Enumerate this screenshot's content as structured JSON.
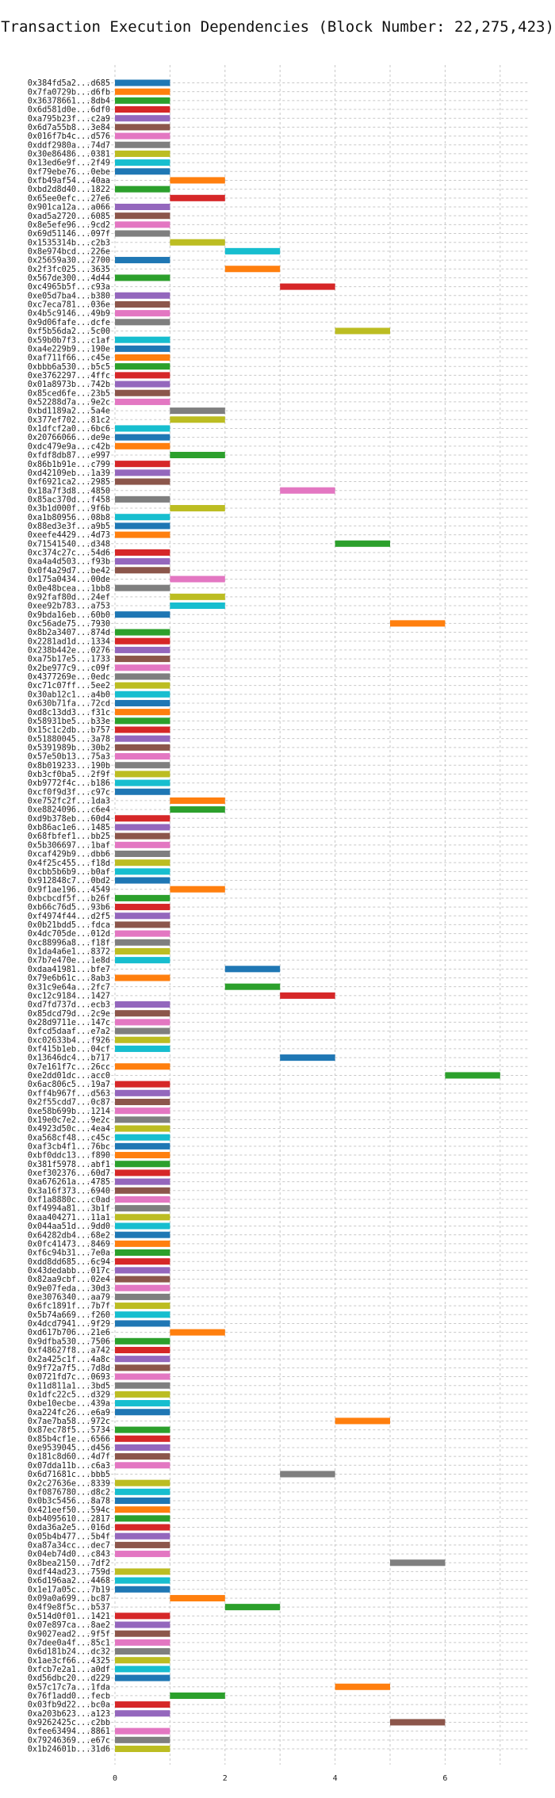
{
  "chart_data": {
    "type": "gantt",
    "title": "Transaction Execution Dependencies (Block Number: 22,275,423)",
    "xlabel": "",
    "ylabel": "",
    "xlim": [
      -0.5,
      7.5
    ],
    "x_ticks": [
      0,
      2,
      4,
      6
    ],
    "grid": true,
    "colors": [
      "#1f77b4",
      "#ff7f0e",
      "#2ca02c",
      "#d62728",
      "#9467bd",
      "#8c564b",
      "#e377c2",
      "#7f7f7f",
      "#bcbd22",
      "#17becf"
    ],
    "transactions": [
      {
        "label": "0x384fd5a2...d685",
        "start": 0,
        "end": 1
      },
      {
        "label": "0x7fa0729b...d6fb",
        "start": 0,
        "end": 1
      },
      {
        "label": "0x36378661...8db4",
        "start": 0,
        "end": 1
      },
      {
        "label": "0x6d581d0e...6df0",
        "start": 0,
        "end": 1
      },
      {
        "label": "0xa795b23f...c2a9",
        "start": 0,
        "end": 1
      },
      {
        "label": "0x6d7a55b8...3e84",
        "start": 0,
        "end": 1
      },
      {
        "label": "0x016f7b4c...d576",
        "start": 0,
        "end": 1
      },
      {
        "label": "0xddf2980a...74d7",
        "start": 0,
        "end": 1
      },
      {
        "label": "0x30e86486...0381",
        "start": 0,
        "end": 1
      },
      {
        "label": "0x13ed6e9f...2f49",
        "start": 0,
        "end": 1
      },
      {
        "label": "0xf79ebe76...0ebe",
        "start": 0,
        "end": 1
      },
      {
        "label": "0xfb49af54...40aa",
        "start": 1,
        "end": 2
      },
      {
        "label": "0xbd2d8d40...1822",
        "start": 0,
        "end": 1
      },
      {
        "label": "0x65ee0efc...27e6",
        "start": 1,
        "end": 2
      },
      {
        "label": "0x901ca12a...a066",
        "start": 0,
        "end": 1
      },
      {
        "label": "0xad5a2720...6085",
        "start": 0,
        "end": 1
      },
      {
        "label": "0x8e5efe96...9cd2",
        "start": 0,
        "end": 1
      },
      {
        "label": "0x69d51146...097f",
        "start": 0,
        "end": 1
      },
      {
        "label": "0x1535314b...c2b3",
        "start": 1,
        "end": 2
      },
      {
        "label": "0x8e974bcd...226e",
        "start": 2,
        "end": 3
      },
      {
        "label": "0x25659a30...2700",
        "start": 0,
        "end": 1
      },
      {
        "label": "0x2f3fc025...3635",
        "start": 2,
        "end": 3
      },
      {
        "label": "0x567de300...4d44",
        "start": 0,
        "end": 1
      },
      {
        "label": "0xc4965b5f...c93a",
        "start": 3,
        "end": 4
      },
      {
        "label": "0xe05d7ba4...b380",
        "start": 0,
        "end": 1
      },
      {
        "label": "0xc7eca781...036e",
        "start": 0,
        "end": 1
      },
      {
        "label": "0x4b5c9146...49b9",
        "start": 0,
        "end": 1
      },
      {
        "label": "0x9d06fafe...dcfe",
        "start": 0,
        "end": 1
      },
      {
        "label": "0xf5b56da2...5c00",
        "start": 4,
        "end": 5
      },
      {
        "label": "0x59b0b7f3...c1af",
        "start": 0,
        "end": 1
      },
      {
        "label": "0xa4e229b9...190e",
        "start": 0,
        "end": 1
      },
      {
        "label": "0xaf711f66...c45e",
        "start": 0,
        "end": 1
      },
      {
        "label": "0xbbb6a530...b5c5",
        "start": 0,
        "end": 1
      },
      {
        "label": "0xe3762297...4ffc",
        "start": 0,
        "end": 1
      },
      {
        "label": "0x01a8973b...742b",
        "start": 0,
        "end": 1
      },
      {
        "label": "0x85ced6fe...23b5",
        "start": 0,
        "end": 1
      },
      {
        "label": "0x52288d7a...9e2c",
        "start": 0,
        "end": 1
      },
      {
        "label": "0xbd1189a2...5a4e",
        "start": 1,
        "end": 2
      },
      {
        "label": "0x377ef702...81c2",
        "start": 1,
        "end": 2
      },
      {
        "label": "0x1dfcf2a0...6bc6",
        "start": 0,
        "end": 1
      },
      {
        "label": "0x20766066...de9e",
        "start": 0,
        "end": 1
      },
      {
        "label": "0xdc479e9a...c42b",
        "start": 0,
        "end": 1
      },
      {
        "label": "0xfdf8db87...e997",
        "start": 1,
        "end": 2
      },
      {
        "label": "0x86b1b91e...c799",
        "start": 0,
        "end": 1
      },
      {
        "label": "0xd42109eb...1a39",
        "start": 0,
        "end": 1
      },
      {
        "label": "0xf6921ca2...2985",
        "start": 0,
        "end": 1
      },
      {
        "label": "0x18a7f3d8...4850",
        "start": 3,
        "end": 4
      },
      {
        "label": "0x85ac370d...f458",
        "start": 0,
        "end": 1
      },
      {
        "label": "0x3b1d000f...9f6b",
        "start": 1,
        "end": 2
      },
      {
        "label": "0xa1b80956...08b8",
        "start": 0,
        "end": 1
      },
      {
        "label": "0x88ed3e3f...a9b5",
        "start": 0,
        "end": 1
      },
      {
        "label": "0xeefe4429...4d73",
        "start": 0,
        "end": 1
      },
      {
        "label": "0x71541540...d348",
        "start": 4,
        "end": 5
      },
      {
        "label": "0xc374c27c...54d6",
        "start": 0,
        "end": 1
      },
      {
        "label": "0xa4a4d503...f93b",
        "start": 0,
        "end": 1
      },
      {
        "label": "0x0f4a29d7...be42",
        "start": 0,
        "end": 1
      },
      {
        "label": "0x175a0434...00de",
        "start": 1,
        "end": 2
      },
      {
        "label": "0x0e48bcea...1bb8",
        "start": 0,
        "end": 1
      },
      {
        "label": "0x92faf80d...24ef",
        "start": 1,
        "end": 2
      },
      {
        "label": "0xee92b783...a753",
        "start": 1,
        "end": 2
      },
      {
        "label": "0x9bda16eb...60b0",
        "start": 0,
        "end": 1
      },
      {
        "label": "0xc56ade75...7930",
        "start": 5,
        "end": 6
      },
      {
        "label": "0x8b2a3407...874d",
        "start": 0,
        "end": 1
      },
      {
        "label": "0x2281ad1d...1334",
        "start": 0,
        "end": 1
      },
      {
        "label": "0x238b442e...0276",
        "start": 0,
        "end": 1
      },
      {
        "label": "0xa75b17e5...1733",
        "start": 0,
        "end": 1
      },
      {
        "label": "0x2be977c9...c09f",
        "start": 0,
        "end": 1
      },
      {
        "label": "0x4377269e...0edc",
        "start": 0,
        "end": 1
      },
      {
        "label": "0xc71c07ff...5ee2",
        "start": 0,
        "end": 1
      },
      {
        "label": "0x30ab12c1...a4b0",
        "start": 0,
        "end": 1
      },
      {
        "label": "0x630b71fa...72cd",
        "start": 0,
        "end": 1
      },
      {
        "label": "0xd8c13dd3...f31c",
        "start": 0,
        "end": 1
      },
      {
        "label": "0x58931be5...b33e",
        "start": 0,
        "end": 1
      },
      {
        "label": "0x15c1c2db...b757",
        "start": 0,
        "end": 1
      },
      {
        "label": "0x51880045...3a78",
        "start": 0,
        "end": 1
      },
      {
        "label": "0x5391989b...30b2",
        "start": 0,
        "end": 1
      },
      {
        "label": "0x57e50b13...75a3",
        "start": 0,
        "end": 1
      },
      {
        "label": "0x8b019233...190b",
        "start": 0,
        "end": 1
      },
      {
        "label": "0xb3cf0ba5...2f9f",
        "start": 0,
        "end": 1
      },
      {
        "label": "0xb9772f4c...b186",
        "start": 0,
        "end": 1
      },
      {
        "label": "0xcf0f9d3f...c97c",
        "start": 0,
        "end": 1
      },
      {
        "label": "0xe752fc2f...1da3",
        "start": 1,
        "end": 2
      },
      {
        "label": "0xe8824096...c6e4",
        "start": 1,
        "end": 2
      },
      {
        "label": "0xd9b378eb...60d4",
        "start": 0,
        "end": 1
      },
      {
        "label": "0xb86ac1e6...1485",
        "start": 0,
        "end": 1
      },
      {
        "label": "0x68fbfef1...bb25",
        "start": 0,
        "end": 1
      },
      {
        "label": "0x5b306697...1baf",
        "start": 0,
        "end": 1
      },
      {
        "label": "0xcaf429b9...dbb6",
        "start": 0,
        "end": 1
      },
      {
        "label": "0x4f25c455...f18d",
        "start": 0,
        "end": 1
      },
      {
        "label": "0xcbb5b6b9...b0af",
        "start": 0,
        "end": 1
      },
      {
        "label": "0x912848c7...0bd2",
        "start": 0,
        "end": 1
      },
      {
        "label": "0x9f1ae196...4549",
        "start": 1,
        "end": 2
      },
      {
        "label": "0xbcbcdf5f...b26f",
        "start": 0,
        "end": 1
      },
      {
        "label": "0xb66c76d5...93b6",
        "start": 0,
        "end": 1
      },
      {
        "label": "0xf4974f44...d2f5",
        "start": 0,
        "end": 1
      },
      {
        "label": "0x0b21bdd5...fdca",
        "start": 0,
        "end": 1
      },
      {
        "label": "0x4dc705de...012d",
        "start": 0,
        "end": 1
      },
      {
        "label": "0xc88996a8...f18f",
        "start": 0,
        "end": 1
      },
      {
        "label": "0x1da4a6e1...8372",
        "start": 0,
        "end": 1
      },
      {
        "label": "0x7b7e470e...1e8d",
        "start": 0,
        "end": 1
      },
      {
        "label": "0xdaa41981...bfe7",
        "start": 2,
        "end": 3
      },
      {
        "label": "0x79e6b61c...8ab3",
        "start": 0,
        "end": 1
      },
      {
        "label": "0x31c9e64a...2fc7",
        "start": 2,
        "end": 3
      },
      {
        "label": "0xc12c9184...1427",
        "start": 3,
        "end": 4
      },
      {
        "label": "0xd7fd737d...ecb3",
        "start": 0,
        "end": 1
      },
      {
        "label": "0x85dcd79d...2c9e",
        "start": 0,
        "end": 1
      },
      {
        "label": "0x28d9711e...147c",
        "start": 0,
        "end": 1
      },
      {
        "label": "0xfcd5daaf...e7a2",
        "start": 0,
        "end": 1
      },
      {
        "label": "0xc02633b4...f926",
        "start": 0,
        "end": 1
      },
      {
        "label": "0xf415b1eb...04cf",
        "start": 0,
        "end": 1
      },
      {
        "label": "0x13646dc4...b717",
        "start": 3,
        "end": 4
      },
      {
        "label": "0x7e161f7c...26cc",
        "start": 0,
        "end": 1
      },
      {
        "label": "0xe2dd01dc...acc0",
        "start": 6,
        "end": 7
      },
      {
        "label": "0x6ac806c5...19a7",
        "start": 0,
        "end": 1
      },
      {
        "label": "0xff4b967f...d563",
        "start": 0,
        "end": 1
      },
      {
        "label": "0x2f55cdd7...0c87",
        "start": 0,
        "end": 1
      },
      {
        "label": "0xe58b699b...1214",
        "start": 0,
        "end": 1
      },
      {
        "label": "0x19e0c7e2...9e2c",
        "start": 0,
        "end": 1
      },
      {
        "label": "0x4923d50c...4ea4",
        "start": 0,
        "end": 1
      },
      {
        "label": "0xa568cf48...c45c",
        "start": 0,
        "end": 1
      },
      {
        "label": "0xaf3cb4f1...76bc",
        "start": 0,
        "end": 1
      },
      {
        "label": "0xbf0ddc13...f890",
        "start": 0,
        "end": 1
      },
      {
        "label": "0x381f5978...abf1",
        "start": 0,
        "end": 1
      },
      {
        "label": "0xef302376...60d7",
        "start": 0,
        "end": 1
      },
      {
        "label": "0xa676261a...4785",
        "start": 0,
        "end": 1
      },
      {
        "label": "0x3a16f373...6940",
        "start": 0,
        "end": 1
      },
      {
        "label": "0xf1a8880c...c0ad",
        "start": 0,
        "end": 1
      },
      {
        "label": "0xf4994a81...3b1f",
        "start": 0,
        "end": 1
      },
      {
        "label": "0xaa404271...11a1",
        "start": 0,
        "end": 1
      },
      {
        "label": "0x044aa51d...9dd0",
        "start": 0,
        "end": 1
      },
      {
        "label": "0x64282db4...68e2",
        "start": 0,
        "end": 1
      },
      {
        "label": "0x0fc41473...8469",
        "start": 0,
        "end": 1
      },
      {
        "label": "0xf6c94b31...7e0a",
        "start": 0,
        "end": 1
      },
      {
        "label": "0xdd8dd685...6c94",
        "start": 0,
        "end": 1
      },
      {
        "label": "0x43dedabb...017c",
        "start": 0,
        "end": 1
      },
      {
        "label": "0x82aa9cbf...02e4",
        "start": 0,
        "end": 1
      },
      {
        "label": "0x9e07feda...30d3",
        "start": 0,
        "end": 1
      },
      {
        "label": "0xe3076340...aa79",
        "start": 0,
        "end": 1
      },
      {
        "label": "0x6fc1891f...7b7f",
        "start": 0,
        "end": 1
      },
      {
        "label": "0x5b74a669...f260",
        "start": 0,
        "end": 1
      },
      {
        "label": "0x4dcd7941...9f29",
        "start": 0,
        "end": 1
      },
      {
        "label": "0xd617b706...21e6",
        "start": 1,
        "end": 2
      },
      {
        "label": "0x9dfba530...7506",
        "start": 0,
        "end": 1
      },
      {
        "label": "0xf48627f8...a742",
        "start": 0,
        "end": 1
      },
      {
        "label": "0x2a425c1f...4a8c",
        "start": 0,
        "end": 1
      },
      {
        "label": "0x9f72a7f5...7d8d",
        "start": 0,
        "end": 1
      },
      {
        "label": "0x0721fd7c...0693",
        "start": 0,
        "end": 1
      },
      {
        "label": "0x11d811a1...3bd5",
        "start": 0,
        "end": 1
      },
      {
        "label": "0x1dfc22c5...d329",
        "start": 0,
        "end": 1
      },
      {
        "label": "0xbe10ecbe...439a",
        "start": 0,
        "end": 1
      },
      {
        "label": "0xa224fc26...e6a9",
        "start": 0,
        "end": 1
      },
      {
        "label": "0x7ae7ba58...972c",
        "start": 4,
        "end": 5
      },
      {
        "label": "0x87ec78f5...5734",
        "start": 0,
        "end": 1
      },
      {
        "label": "0x85b4cf1e...6566",
        "start": 0,
        "end": 1
      },
      {
        "label": "0xe9539045...d456",
        "start": 0,
        "end": 1
      },
      {
        "label": "0x181c8d60...4d7f",
        "start": 0,
        "end": 1
      },
      {
        "label": "0x07dda11b...c6a3",
        "start": 0,
        "end": 1
      },
      {
        "label": "0x6d71681c...bbb5",
        "start": 3,
        "end": 4
      },
      {
        "label": "0x2c27636e...8339",
        "start": 0,
        "end": 1
      },
      {
        "label": "0xf0876780...d8c2",
        "start": 0,
        "end": 1
      },
      {
        "label": "0x0b3c5456...8a78",
        "start": 0,
        "end": 1
      },
      {
        "label": "0x421eef50...594c",
        "start": 0,
        "end": 1
      },
      {
        "label": "0xb4095610...2817",
        "start": 0,
        "end": 1
      },
      {
        "label": "0xda36a2e5...016d",
        "start": 0,
        "end": 1
      },
      {
        "label": "0x05b4b477...5b4f",
        "start": 0,
        "end": 1
      },
      {
        "label": "0xa87a34cc...dec7",
        "start": 0,
        "end": 1
      },
      {
        "label": "0x04eb74d0...c843",
        "start": 0,
        "end": 1
      },
      {
        "label": "0x8bea2150...7df2",
        "start": 5,
        "end": 6
      },
      {
        "label": "0xdf44ad23...759d",
        "start": 0,
        "end": 1
      },
      {
        "label": "0x6d196aa2...4468",
        "start": 0,
        "end": 1
      },
      {
        "label": "0x1e17a05c...7b19",
        "start": 0,
        "end": 1
      },
      {
        "label": "0x09a0a699...bc87",
        "start": 1,
        "end": 2
      },
      {
        "label": "0x4f9e8f5c...b537",
        "start": 2,
        "end": 3
      },
      {
        "label": "0x514d0f01...1421",
        "start": 0,
        "end": 1
      },
      {
        "label": "0x07e897ca...8ae2",
        "start": 0,
        "end": 1
      },
      {
        "label": "0x9027ead2...9f5f",
        "start": 0,
        "end": 1
      },
      {
        "label": "0x7dee0a4f...85c1",
        "start": 0,
        "end": 1
      },
      {
        "label": "0x6d181b24...dc32",
        "start": 0,
        "end": 1
      },
      {
        "label": "0x1ae3cf66...4325",
        "start": 0,
        "end": 1
      },
      {
        "label": "0xfcb7e2a1...a0df",
        "start": 0,
        "end": 1
      },
      {
        "label": "0xd56dbc20...d229",
        "start": 0,
        "end": 1
      },
      {
        "label": "0x57c17c7a...1fda",
        "start": 4,
        "end": 5
      },
      {
        "label": "0x76f1add0...fecb",
        "start": 1,
        "end": 2
      },
      {
        "label": "0x03fb9d22...bc0a",
        "start": 0,
        "end": 1
      },
      {
        "label": "0xa203b623...a123",
        "start": 0,
        "end": 1
      },
      {
        "label": "0x9262425c...c2bb",
        "start": 5,
        "end": 6
      },
      {
        "label": "0xfee63494...8861",
        "start": 0,
        "end": 1
      },
      {
        "label": "0x79246369...e67c",
        "start": 0,
        "end": 1
      },
      {
        "label": "0x1b24601b...31d6",
        "start": 0,
        "end": 1
      }
    ]
  }
}
